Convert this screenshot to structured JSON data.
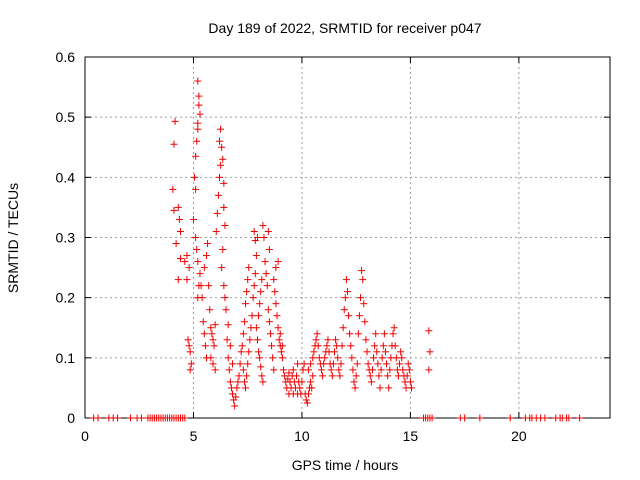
{
  "chart_data": {
    "type": "scatter",
    "title": "Day 189 of 2022, SRMTID for receiver p047",
    "xlabel": "GPS time / hours",
    "ylabel": "SRMTID / TECUs",
    "xlim": [
      0,
      24.2
    ],
    "ylim": [
      0,
      0.6
    ],
    "xticks": [
      0,
      5,
      10,
      15,
      20
    ],
    "yticks": [
      0,
      0.1,
      0.2,
      0.3,
      0.4,
      0.5,
      0.6
    ],
    "xtick_labels": [
      "0",
      "5",
      "10",
      "15",
      "20"
    ],
    "ytick_labels": [
      "0",
      "0.1",
      "0.2",
      "0.3",
      "0.4",
      "0.5",
      "0.6"
    ],
    "grid": true,
    "marker": "+",
    "color": "#ee0000",
    "series": [
      {
        "name": "SRMTID",
        "points": [
          [
            0.4,
            0
          ],
          [
            0.6,
            0
          ],
          [
            1.1,
            0
          ],
          [
            1.3,
            0
          ],
          [
            1.5,
            0
          ],
          [
            2.1,
            0
          ],
          [
            2.4,
            0
          ],
          [
            2.6,
            0
          ],
          [
            2.9,
            0
          ],
          [
            3.0,
            0
          ],
          [
            3.1,
            0
          ],
          [
            3.2,
            0
          ],
          [
            3.3,
            0
          ],
          [
            3.4,
            0
          ],
          [
            3.5,
            0
          ],
          [
            3.6,
            0
          ],
          [
            3.7,
            0
          ],
          [
            3.8,
            0
          ],
          [
            3.9,
            0
          ],
          [
            4.0,
            0
          ],
          [
            4.1,
            0
          ],
          [
            4.2,
            0
          ],
          [
            4.3,
            0
          ],
          [
            4.4,
            0
          ],
          [
            4.5,
            0
          ],
          [
            4.6,
            0
          ],
          [
            15.6,
            0
          ],
          [
            15.7,
            0
          ],
          [
            15.8,
            0
          ],
          [
            15.9,
            0
          ],
          [
            16.0,
            0
          ],
          [
            17.3,
            0
          ],
          [
            17.5,
            0
          ],
          [
            18.2,
            0
          ],
          [
            19.6,
            0
          ],
          [
            20.3,
            0
          ],
          [
            20.5,
            0
          ],
          [
            20.6,
            0
          ],
          [
            20.8,
            0
          ],
          [
            21.0,
            0
          ],
          [
            21.2,
            0
          ],
          [
            21.7,
            0
          ],
          [
            21.9,
            0
          ],
          [
            22.0,
            0
          ],
          [
            22.2,
            0
          ],
          [
            22.3,
            0
          ],
          [
            22.8,
            0
          ],
          [
            4.1,
            0.455
          ],
          [
            4.15,
            0.493
          ],
          [
            4.05,
            0.38
          ],
          [
            4.1,
            0.345
          ],
          [
            4.3,
            0.35
          ],
          [
            4.35,
            0.33
          ],
          [
            4.4,
            0.31
          ],
          [
            4.2,
            0.29
          ],
          [
            4.4,
            0.265
          ],
          [
            4.3,
            0.23
          ],
          [
            4.7,
            0.23
          ],
          [
            4.6,
            0.26
          ],
          [
            4.8,
            0.25
          ],
          [
            4.7,
            0.27
          ],
          [
            4.75,
            0.13
          ],
          [
            4.8,
            0.12
          ],
          [
            4.85,
            0.11
          ],
          [
            4.9,
            0.09
          ],
          [
            4.85,
            0.08
          ],
          [
            5.05,
            0.4
          ],
          [
            5.1,
            0.38
          ],
          [
            5.0,
            0.33
          ],
          [
            5.1,
            0.3
          ],
          [
            5.15,
            0.28
          ],
          [
            5.2,
            0.26
          ],
          [
            5.25,
            0.22
          ],
          [
            5.2,
            0.2
          ],
          [
            5.1,
            0.435
          ],
          [
            5.15,
            0.46
          ],
          [
            5.2,
            0.49
          ],
          [
            5.25,
            0.52
          ],
          [
            5.2,
            0.56
          ],
          [
            5.3,
            0.505
          ],
          [
            5.25,
            0.535
          ],
          [
            5.2,
            0.48
          ],
          [
            5.3,
            0.24
          ],
          [
            5.35,
            0.22
          ],
          [
            5.4,
            0.2
          ],
          [
            5.45,
            0.16
          ],
          [
            5.5,
            0.14
          ],
          [
            5.55,
            0.12
          ],
          [
            5.6,
            0.1
          ],
          [
            5.5,
            0.25
          ],
          [
            5.6,
            0.27
          ],
          [
            5.65,
            0.29
          ],
          [
            5.7,
            0.22
          ],
          [
            5.75,
            0.18
          ],
          [
            5.8,
            0.15
          ],
          [
            5.85,
            0.14
          ],
          [
            5.9,
            0.13
          ],
          [
            5.95,
            0.12
          ],
          [
            5.8,
            0.1
          ],
          [
            5.9,
            0.09
          ],
          [
            6.0,
            0.08
          ],
          [
            6.0,
            0.155
          ],
          [
            6.05,
            0.31
          ],
          [
            6.1,
            0.34
          ],
          [
            6.15,
            0.37
          ],
          [
            6.2,
            0.4
          ],
          [
            6.25,
            0.42
          ],
          [
            6.3,
            0.45
          ],
          [
            6.2,
            0.46
          ],
          [
            6.25,
            0.48
          ],
          [
            6.35,
            0.43
          ],
          [
            6.4,
            0.39
          ],
          [
            6.4,
            0.35
          ],
          [
            6.45,
            0.32
          ],
          [
            6.35,
            0.28
          ],
          [
            6.3,
            0.25
          ],
          [
            6.4,
            0.22
          ],
          [
            6.45,
            0.2
          ],
          [
            6.5,
            0.18
          ],
          [
            6.55,
            0.13
          ],
          [
            6.6,
            0.1
          ],
          [
            6.65,
            0.08
          ],
          [
            6.7,
            0.06
          ],
          [
            6.75,
            0.05
          ],
          [
            6.8,
            0.04
          ],
          [
            6.85,
            0.03
          ],
          [
            6.9,
            0.02
          ],
          [
            6.95,
            0.035
          ],
          [
            7.0,
            0.05
          ],
          [
            7.05,
            0.06
          ],
          [
            7.1,
            0.07
          ],
          [
            7.15,
            0.09
          ],
          [
            7.2,
            0.11
          ],
          [
            6.6,
            0.155
          ],
          [
            6.7,
            0.12
          ],
          [
            6.8,
            0.09
          ],
          [
            7.25,
            0.12
          ],
          [
            7.3,
            0.14
          ],
          [
            7.35,
            0.16
          ],
          [
            7.4,
            0.19
          ],
          [
            7.45,
            0.21
          ],
          [
            7.5,
            0.23
          ],
          [
            7.55,
            0.25
          ],
          [
            7.3,
            0.08
          ],
          [
            7.35,
            0.06
          ],
          [
            7.4,
            0.05
          ],
          [
            7.45,
            0.07
          ],
          [
            7.5,
            0.09
          ],
          [
            7.55,
            0.11
          ],
          [
            7.6,
            0.13
          ],
          [
            7.65,
            0.15
          ],
          [
            7.7,
            0.17
          ],
          [
            7.75,
            0.2
          ],
          [
            7.8,
            0.22
          ],
          [
            7.85,
            0.24
          ],
          [
            7.9,
            0.27
          ],
          [
            7.95,
            0.3
          ],
          [
            7.8,
            0.31
          ],
          [
            7.85,
            0.295
          ],
          [
            7.9,
            0.15
          ],
          [
            7.95,
            0.13
          ],
          [
            8.0,
            0.11
          ],
          [
            8.05,
            0.1
          ],
          [
            8.1,
            0.085
          ],
          [
            8.15,
            0.07
          ],
          [
            8.2,
            0.06
          ],
          [
            8.0,
            0.17
          ],
          [
            8.05,
            0.19
          ],
          [
            8.1,
            0.21
          ],
          [
            8.15,
            0.23
          ],
          [
            8.2,
            0.32
          ],
          [
            8.25,
            0.3
          ],
          [
            8.3,
            0.26
          ],
          [
            8.35,
            0.24
          ],
          [
            8.4,
            0.22
          ],
          [
            8.45,
            0.18
          ],
          [
            8.5,
            0.16
          ],
          [
            8.55,
            0.14
          ],
          [
            8.6,
            0.12
          ],
          [
            8.65,
            0.1
          ],
          [
            8.7,
            0.08
          ],
          [
            8.5,
            0.28
          ],
          [
            8.45,
            0.31
          ],
          [
            8.75,
            0.21
          ],
          [
            8.8,
            0.19
          ],
          [
            8.85,
            0.17
          ],
          [
            8.9,
            0.15
          ],
          [
            8.95,
            0.13
          ],
          [
            9.0,
            0.12
          ],
          [
            9.05,
            0.11
          ],
          [
            9.1,
            0.1
          ],
          [
            8.7,
            0.23
          ],
          [
            8.8,
            0.25
          ],
          [
            8.9,
            0.26
          ],
          [
            9.0,
            0.14
          ],
          [
            9.1,
            0.12
          ],
          [
            9.15,
            0.08
          ],
          [
            9.2,
            0.07
          ],
          [
            9.25,
            0.06
          ],
          [
            9.3,
            0.05
          ],
          [
            9.35,
            0.065
          ],
          [
            9.4,
            0.075
          ],
          [
            9.45,
            0.06
          ],
          [
            9.5,
            0.05
          ],
          [
            9.55,
            0.07
          ],
          [
            9.6,
            0.08
          ],
          [
            9.65,
            0.06
          ],
          [
            9.7,
            0.05
          ],
          [
            9.75,
            0.07
          ],
          [
            9.8,
            0.09
          ],
          [
            9.85,
            0.06
          ],
          [
            9.9,
            0.05
          ],
          [
            9.95,
            0.04
          ],
          [
            10.0,
            0.06
          ],
          [
            10.05,
            0.08
          ],
          [
            10.1,
            0.09
          ],
          [
            9.6,
            0.04
          ],
          [
            9.4,
            0.04
          ],
          [
            9.8,
            0.04
          ],
          [
            10.15,
            0.04
          ],
          [
            10.2,
            0.03
          ],
          [
            10.25,
            0.025
          ],
          [
            10.3,
            0.04
          ],
          [
            10.35,
            0.05
          ],
          [
            10.4,
            0.06
          ],
          [
            10.45,
            0.05
          ],
          [
            10.5,
            0.07
          ],
          [
            10.3,
            0.08
          ],
          [
            10.4,
            0.09
          ],
          [
            10.5,
            0.1
          ],
          [
            10.55,
            0.11
          ],
          [
            10.6,
            0.12
          ],
          [
            10.65,
            0.13
          ],
          [
            10.7,
            0.14
          ],
          [
            10.75,
            0.12
          ],
          [
            10.8,
            0.1
          ],
          [
            10.85,
            0.09
          ],
          [
            10.9,
            0.08
          ],
          [
            10.95,
            0.07
          ],
          [
            11.0,
            0.09
          ],
          [
            11.05,
            0.1
          ],
          [
            11.1,
            0.11
          ],
          [
            11.15,
            0.12
          ],
          [
            11.2,
            0.13
          ],
          [
            11.25,
            0.11
          ],
          [
            11.3,
            0.09
          ],
          [
            11.35,
            0.08
          ],
          [
            11.4,
            0.07
          ],
          [
            11.45,
            0.09
          ],
          [
            11.5,
            0.11
          ],
          [
            11.55,
            0.13
          ],
          [
            11.6,
            0.12
          ],
          [
            11.65,
            0.1
          ],
          [
            11.7,
            0.08
          ],
          [
            11.75,
            0.07
          ],
          [
            11.8,
            0.09
          ],
          [
            11.85,
            0.12
          ],
          [
            11.9,
            0.15
          ],
          [
            11.95,
            0.18
          ],
          [
            12.0,
            0.2
          ],
          [
            12.05,
            0.23
          ],
          [
            12.1,
            0.21
          ],
          [
            12.15,
            0.17
          ],
          [
            12.2,
            0.14
          ],
          [
            12.25,
            0.12
          ],
          [
            12.3,
            0.1
          ],
          [
            12.35,
            0.08
          ],
          [
            12.4,
            0.06
          ],
          [
            12.45,
            0.05
          ],
          [
            12.5,
            0.07
          ],
          [
            12.55,
            0.09
          ],
          [
            12.6,
            0.14
          ],
          [
            12.65,
            0.17
          ],
          [
            12.7,
            0.2
          ],
          [
            12.75,
            0.245
          ],
          [
            12.8,
            0.23
          ],
          [
            12.85,
            0.19
          ],
          [
            12.9,
            0.16
          ],
          [
            12.95,
            0.13
          ],
          [
            13.0,
            0.11
          ],
          [
            13.05,
            0.09
          ],
          [
            13.1,
            0.08
          ],
          [
            13.15,
            0.07
          ],
          [
            13.2,
            0.06
          ],
          [
            13.25,
            0.08
          ],
          [
            13.3,
            0.1
          ],
          [
            13.35,
            0.12
          ],
          [
            13.4,
            0.14
          ],
          [
            13.45,
            0.11
          ],
          [
            13.5,
            0.09
          ],
          [
            13.55,
            0.07
          ],
          [
            13.6,
            0.05
          ],
          [
            13.65,
            0.08
          ],
          [
            13.7,
            0.1
          ],
          [
            13.75,
            0.12
          ],
          [
            13.8,
            0.14
          ],
          [
            13.85,
            0.11
          ],
          [
            13.9,
            0.09
          ],
          [
            13.95,
            0.07
          ],
          [
            14.0,
            0.05
          ],
          [
            14.05,
            0.08
          ],
          [
            14.1,
            0.1
          ],
          [
            14.15,
            0.12
          ],
          [
            14.2,
            0.14
          ],
          [
            14.25,
            0.15
          ],
          [
            14.3,
            0.12
          ],
          [
            14.35,
            0.1
          ],
          [
            14.4,
            0.08
          ],
          [
            14.45,
            0.07
          ],
          [
            14.5,
            0.09
          ],
          [
            14.55,
            0.11
          ],
          [
            14.6,
            0.1
          ],
          [
            14.65,
            0.08
          ],
          [
            14.7,
            0.07
          ],
          [
            14.75,
            0.06
          ],
          [
            14.8,
            0.05
          ],
          [
            14.85,
            0.07
          ],
          [
            14.9,
            0.09
          ],
          [
            14.95,
            0.08
          ],
          [
            15.0,
            0.06
          ],
          [
            15.05,
            0.05
          ],
          [
            15.85,
            0.145
          ],
          [
            15.9,
            0.11
          ],
          [
            15.85,
            0.08
          ]
        ]
      }
    ]
  }
}
